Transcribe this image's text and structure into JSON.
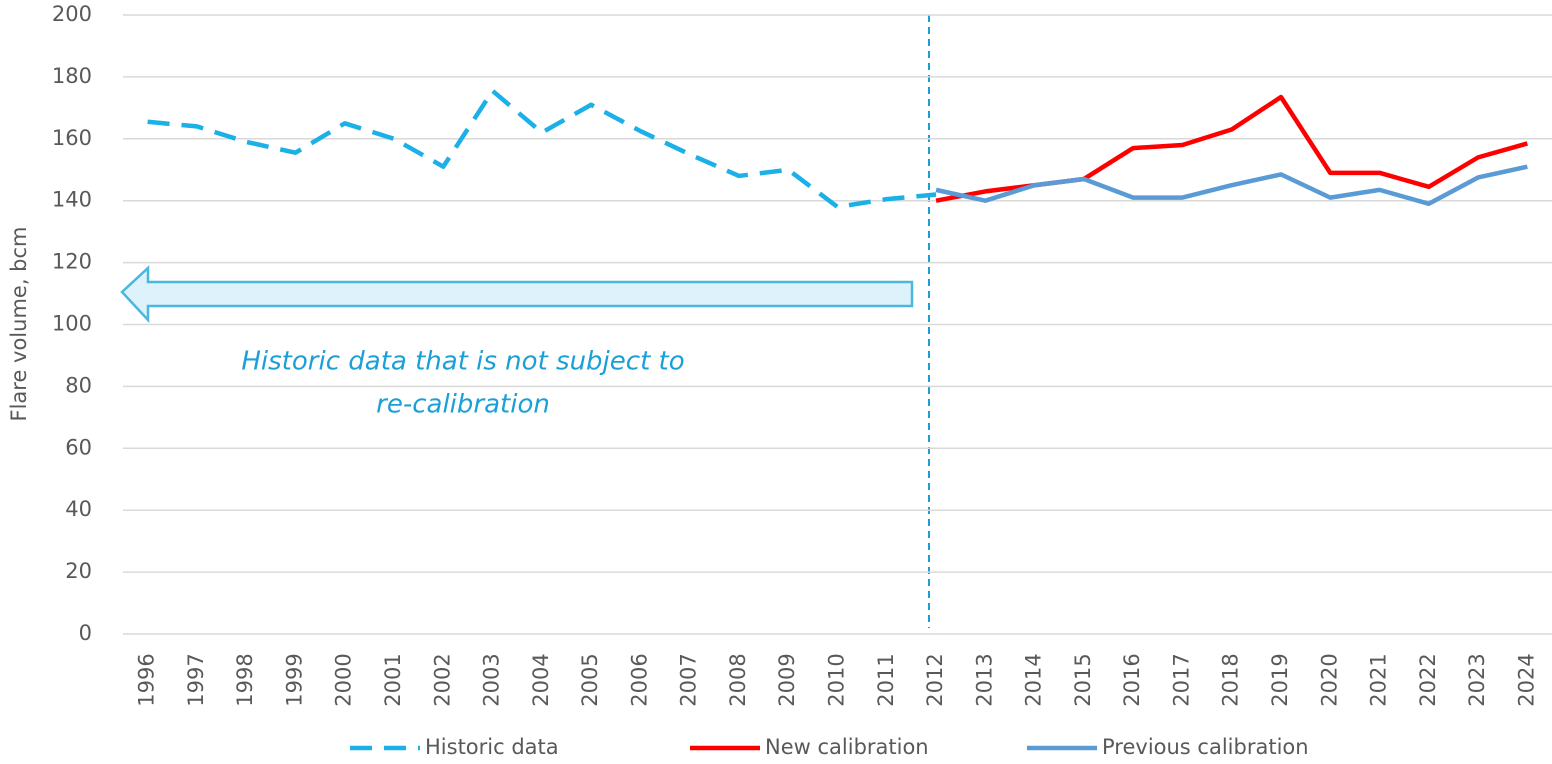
{
  "chart_data": {
    "type": "line",
    "y_label": "Flare volume, bcm",
    "annotation": [
      "Historic data that is not subject to",
      "re-calibration"
    ],
    "categories": [
      "1996",
      "1997",
      "1998",
      "1999",
      "2000",
      "2001",
      "2002",
      "2003",
      "2004",
      "2005",
      "2006",
      "2007",
      "2008",
      "2009",
      "2010",
      "2011",
      "2012",
      "2013",
      "2014",
      "2015",
      "2016",
      "2017",
      "2018",
      "2019",
      "2020",
      "2021",
      "2022",
      "2023",
      "2024"
    ],
    "series": [
      {
        "name": "Historic data",
        "color": "#1bb0e8",
        "dashed": true,
        "values": [
          165.5,
          164,
          159,
          155.5,
          165,
          160,
          151,
          175.5,
          162,
          171,
          162.5,
          155,
          148,
          150,
          138,
          140.5,
          142,
          null,
          null,
          null,
          null,
          null,
          null,
          null,
          null,
          null,
          null,
          null,
          null
        ]
      },
      {
        "name": "New calibration",
        "color": "#ff0000",
        "dashed": false,
        "values": [
          null,
          null,
          null,
          null,
          null,
          null,
          null,
          null,
          null,
          null,
          null,
          null,
          null,
          null,
          null,
          null,
          140,
          143,
          145,
          147,
          157,
          158,
          163,
          173.5,
          149,
          149,
          144.5,
          154,
          158.5
        ]
      },
      {
        "name": "Previous calibration",
        "color": "#5b9bd5",
        "dashed": false,
        "values": [
          null,
          null,
          null,
          null,
          null,
          null,
          null,
          null,
          null,
          null,
          null,
          null,
          null,
          null,
          null,
          null,
          143.5,
          140,
          145,
          147,
          141,
          141,
          145,
          148.5,
          141,
          143.5,
          139,
          147.5,
          151
        ]
      }
    ],
    "ylim": [
      0,
      200
    ],
    "yticks": [
      0,
      20,
      40,
      60,
      80,
      100,
      120,
      140,
      160,
      180,
      200
    ],
    "grid": true,
    "legend": "bottom"
  }
}
